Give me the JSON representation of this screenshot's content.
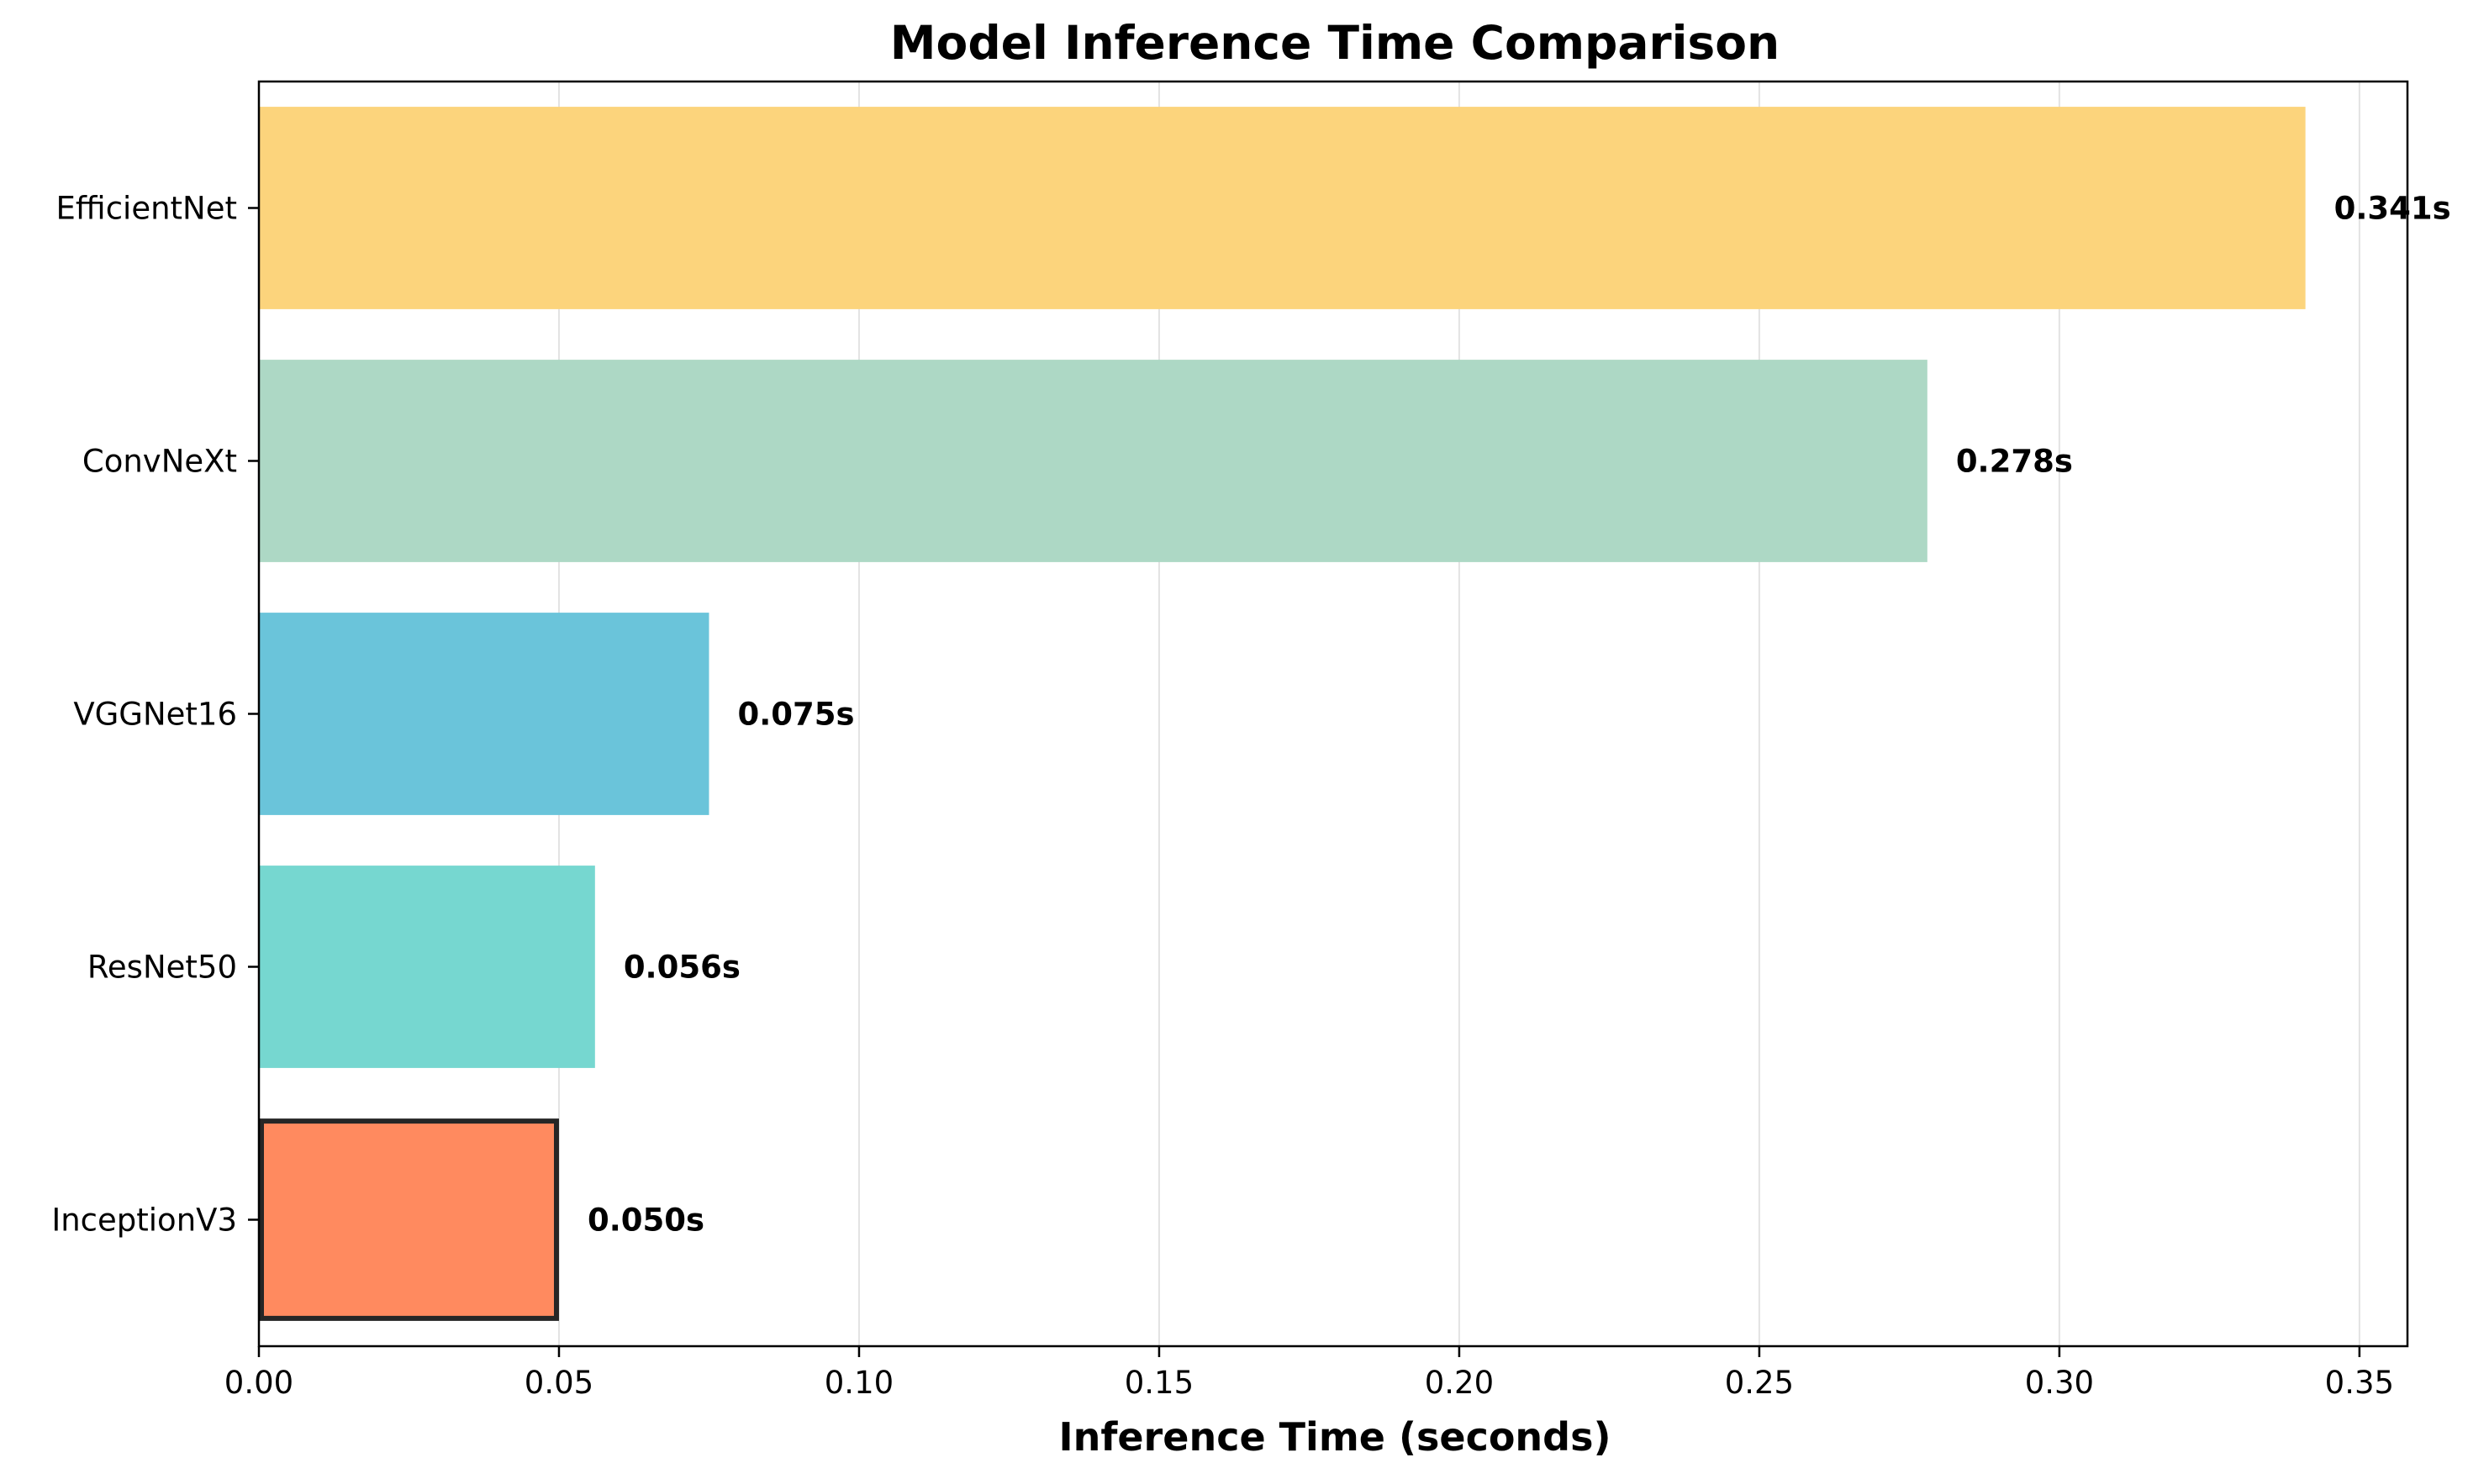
{
  "chart_data": {
    "type": "bar",
    "orientation": "horizontal",
    "title": "Model Inference Time Comparison",
    "xlabel": "Inference Time (seconds)",
    "ylabel": "",
    "xlim": [
      0,
      0.358
    ],
    "x_ticks": [
      {
        "value": 0.0,
        "label": "0.00"
      },
      {
        "value": 0.05,
        "label": "0.05"
      },
      {
        "value": 0.1,
        "label": "0.10"
      },
      {
        "value": 0.15,
        "label": "0.15"
      },
      {
        "value": 0.2,
        "label": "0.20"
      },
      {
        "value": 0.25,
        "label": "0.25"
      },
      {
        "value": 0.3,
        "label": "0.30"
      },
      {
        "value": 0.35,
        "label": "0.35"
      }
    ],
    "grid": "vertical",
    "bars": [
      {
        "category": "EfficientNet",
        "value": 0.341,
        "label": "0.341s",
        "color": "#FCD47C",
        "highlighted": false
      },
      {
        "category": "ConvNeXt",
        "value": 0.278,
        "label": "0.278s",
        "color": "#ADD8C5",
        "highlighted": false
      },
      {
        "category": "VGGNet16",
        "value": 0.075,
        "label": "0.075s",
        "color": "#6AC4DA",
        "highlighted": false
      },
      {
        "category": "ResNet50",
        "value": 0.056,
        "label": "0.056s",
        "color": "#76D7D0",
        "highlighted": false
      },
      {
        "category": "InceptionV3",
        "value": 0.05,
        "label": "0.050s",
        "color": "#FF8A5F",
        "highlighted": true
      }
    ]
  }
}
